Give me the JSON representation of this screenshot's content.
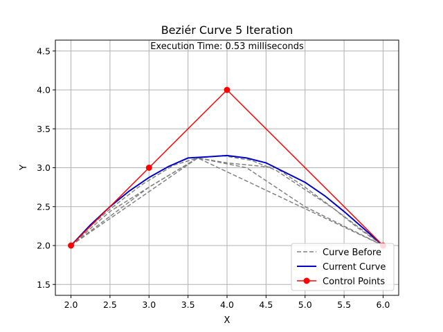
{
  "chart_data": {
    "type": "line",
    "title": "Beziér Curve 5 Iteration",
    "annotation": "Execution Time: 0.53 milliseconds",
    "xlabel": "X",
    "ylabel": "Y",
    "xlim": [
      1.8,
      6.2
    ],
    "ylim": [
      1.36,
      4.64
    ],
    "xticks": [
      2.0,
      2.5,
      3.0,
      3.5,
      4.0,
      4.5,
      5.0,
      5.5,
      6.0
    ],
    "xtick_labels": [
      "2.0",
      "2.5",
      "3.0",
      "3.5",
      "4.0",
      "4.5",
      "5.0",
      "5.5",
      "6.0"
    ],
    "yticks": [
      1.5,
      2.0,
      2.5,
      3.0,
      3.5,
      4.0,
      4.5
    ],
    "ytick_labels": [
      "1.5",
      "2.0",
      "2.5",
      "3.0",
      "3.5",
      "4.0",
      "4.5"
    ],
    "grid": true,
    "legend_position": "lower-right",
    "series": [
      {
        "name": "Curve Before",
        "style": "dashed",
        "color": "#808080",
        "segments": [
          [
            [
              2.0,
              2.0
            ],
            [
              3.625,
              3.125
            ],
            [
              6.0,
              2.0
            ]
          ],
          [
            [
              2.0,
              2.0
            ],
            [
              3.0,
              2.75
            ],
            [
              3.625,
              3.125
            ],
            [
              4.25,
              3.0
            ],
            [
              5.0,
              2.5
            ],
            [
              6.0,
              2.0
            ]
          ],
          [
            [
              2.0,
              2.0
            ],
            [
              2.5,
              2.4375
            ],
            [
              3.0,
              2.75
            ],
            [
              3.625,
              3.125
            ],
            [
              4.0,
              3.0625
            ],
            [
              4.625,
              3.0
            ],
            [
              5.0,
              2.75
            ],
            [
              5.5,
              2.375
            ],
            [
              6.0,
              2.0
            ]
          ],
          [
            [
              2.0,
              2.0
            ],
            [
              2.25,
              2.25
            ],
            [
              2.5,
              2.4688
            ],
            [
              2.9063,
              2.7813
            ],
            [
              3.3125,
              3.0313
            ],
            [
              3.625,
              3.125
            ],
            [
              3.9375,
              3.1563
            ],
            [
              4.3125,
              3.0938
            ],
            [
              4.625,
              2.9688
            ],
            [
              5.0,
              2.7188
            ],
            [
              5.375,
              2.4688
            ],
            [
              5.6875,
              2.2188
            ],
            [
              6.0,
              2.0
            ]
          ]
        ]
      },
      {
        "name": "Current Curve",
        "style": "solid",
        "color": "#0000cc",
        "points": [
          [
            2.0,
            2.0
          ],
          [
            2.25,
            2.2656
          ],
          [
            2.5,
            2.5
          ],
          [
            2.75,
            2.7031
          ],
          [
            3.0,
            2.875
          ],
          [
            3.25,
            3.0156
          ],
          [
            3.5,
            3.125
          ],
          [
            3.75,
            3.1406
          ],
          [
            4.0,
            3.1563
          ],
          [
            4.25,
            3.125
          ],
          [
            4.5,
            3.0625
          ],
          [
            4.75,
            2.9375
          ],
          [
            5.0,
            2.8125
          ],
          [
            5.25,
            2.6406
          ],
          [
            5.5,
            2.4375
          ],
          [
            5.75,
            2.2188
          ],
          [
            6.0,
            2.0
          ]
        ]
      },
      {
        "name": "Control Points",
        "style": "solid-markers",
        "color": "#ff0000",
        "points": [
          [
            2.0,
            2.0
          ],
          [
            3.0,
            3.0
          ],
          [
            4.0,
            4.0
          ],
          [
            6.0,
            2.0
          ]
        ]
      }
    ]
  }
}
